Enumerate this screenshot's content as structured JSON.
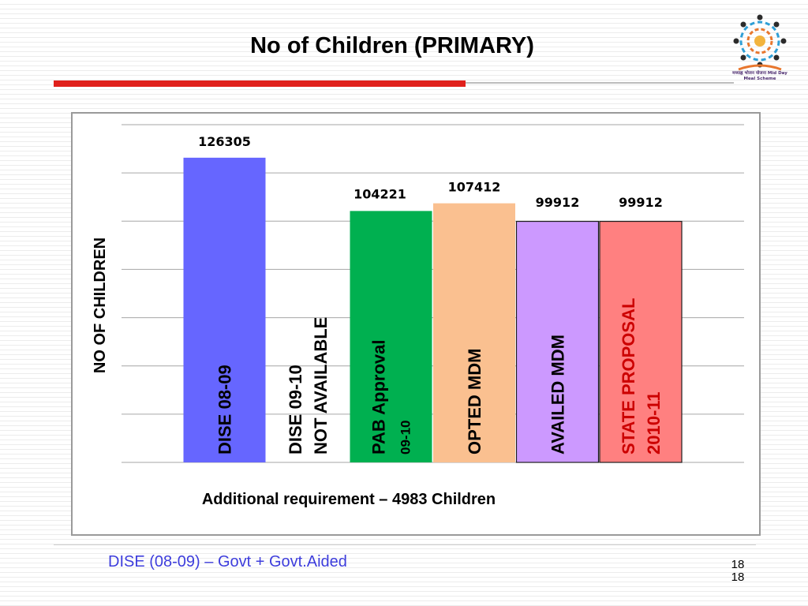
{
  "slide": {
    "title": "No of Children (PRIMARY)",
    "caption": "Additional requirement – 4983 Children",
    "footer_note": "DISE (08-09) – Govt + Govt.Aided",
    "page_number": "18",
    "page_number_repeat": "18",
    "logo_text": "मध्याह्न भोजन योजना Mid Day Meal Scheme",
    "accent_color": "#e0201b"
  },
  "chart_data": {
    "type": "bar",
    "title": "",
    "ylabel": "NO OF CHILDREN",
    "xlabel": "",
    "ylim": [
      0,
      140000
    ],
    "grid": true,
    "legend": "none",
    "categories": [
      {
        "lines": [
          "DISE 08-09"
        ],
        "value": 126305,
        "value_label": "126305",
        "color": "#6666ff",
        "label_color": "#000000",
        "border": ""
      },
      {
        "lines": [
          "DISE 09-10",
          "NOT AVAILABLE"
        ],
        "value": null,
        "value_label": "",
        "color": "",
        "label_color": "#000000",
        "border": ""
      },
      {
        "lines": [
          "PAB Approval",
          "09-10"
        ],
        "value": 104221,
        "value_label": "104221",
        "color": "#00b050",
        "label_color": "#000000",
        "border": ""
      },
      {
        "lines": [
          "OPTED MDM"
        ],
        "value": 107412,
        "value_label": "107412",
        "color": "#fac090",
        "label_color": "#000000",
        "border": ""
      },
      {
        "lines": [
          "AVAILED MDM"
        ],
        "value": 99912,
        "value_label": "99912",
        "color": "#cc99ff",
        "label_color": "#000000",
        "border": "#1f1f1f"
      },
      {
        "lines": [
          "STATE  PROPOSAL",
          "2010-11"
        ],
        "value": 99912,
        "value_label": "99912",
        "color": "#ff8080",
        "label_color": "#cc0000",
        "border": "#1f1f1f"
      }
    ]
  }
}
